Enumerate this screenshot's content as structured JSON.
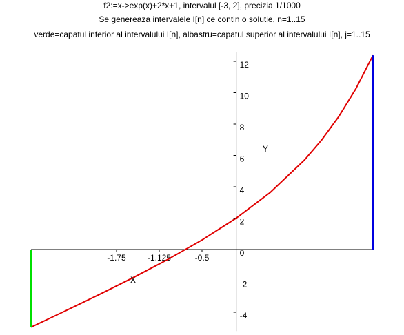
{
  "chart_data": {
    "type": "line",
    "title": "f2:=x->exp(x)+2*x+1, intervalul [-3, 2], precizia 1/1000",
    "subtitle": "Se genereaza intervalele I[n] ce contin o solutie, n=1..15",
    "caption": "verde=capatul inferior al intervalului I[n], albastru=capatul superior al intervalului I[n], j=1..15",
    "x_label": "X",
    "y_label": "Y",
    "xlim": [
      -3,
      2
    ],
    "ylim": [
      -5.2,
      12.6
    ],
    "xticks": [
      -1.75,
      -1.125,
      -0.5
    ],
    "yticks": [
      -4,
      -2,
      0,
      2,
      4,
      6,
      8,
      10,
      12
    ],
    "series": [
      {
        "color": "#e00000",
        "x": [
          -3,
          -2.5,
          -2,
          -1.5,
          -1,
          -0.5,
          0,
          0.5,
          1,
          1.25,
          1.5,
          1.75,
          2
        ],
        "values": [
          -4.95,
          -3.918,
          -2.865,
          -1.777,
          -0.632,
          0.607,
          2,
          3.649,
          5.718,
          6.99,
          8.482,
          10.255,
          12.389
        ]
      },
      {
        "color": "#00e000",
        "x": [
          -3,
          -3
        ],
        "values": [
          0,
          -4.95
        ]
      },
      {
        "color": "#0000e0",
        "x": [
          2,
          2
        ],
        "values": [
          0,
          12.389
        ]
      }
    ]
  }
}
